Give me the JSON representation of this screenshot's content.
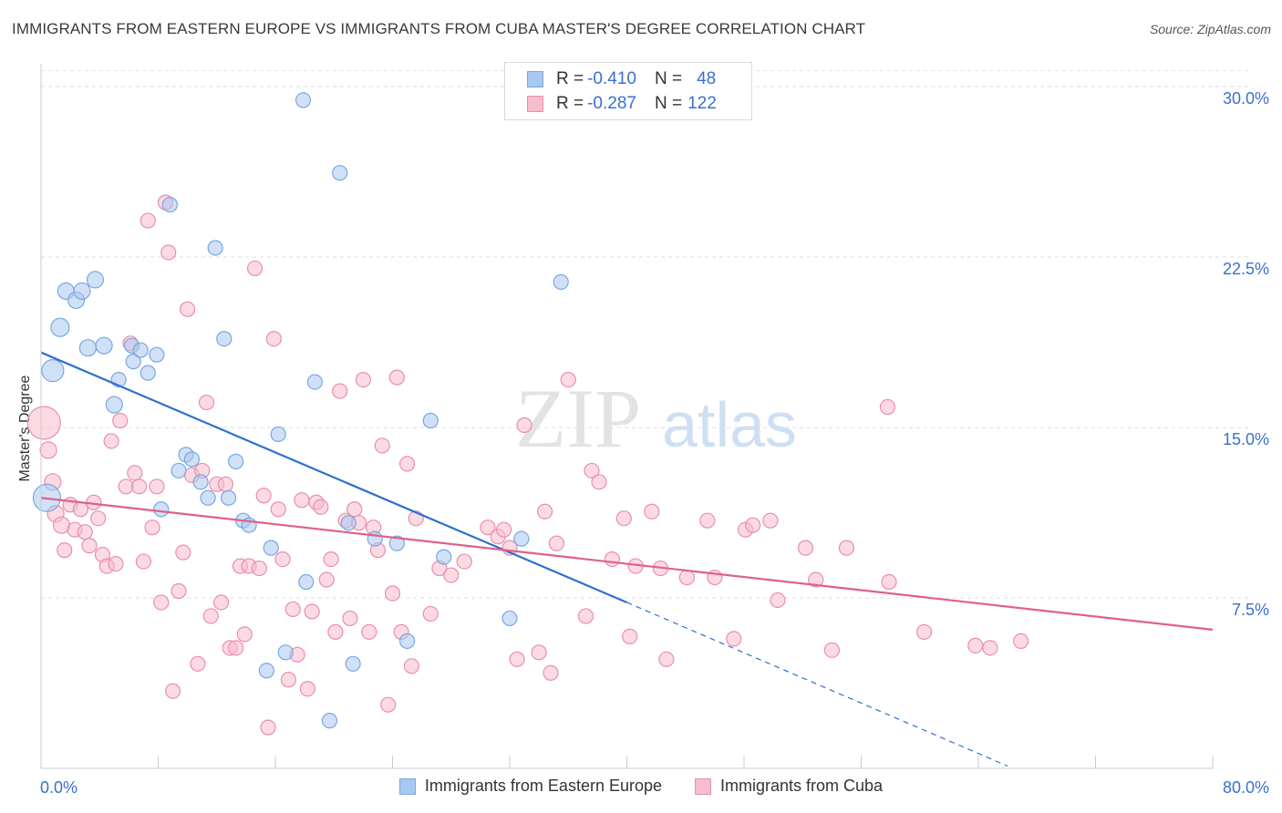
{
  "title": "IMMIGRANTS FROM EASTERN EUROPE VS IMMIGRANTS FROM CUBA MASTER'S DEGREE CORRELATION CHART",
  "source": "Source: ZipAtlas.com",
  "watermark": {
    "zip": "ZIP",
    "atlas": "atlas"
  },
  "legend_top": [
    {
      "r_label": "R =",
      "r_value": "-0.410",
      "n_label": "N =",
      "n_value": "48",
      "color": "#a9c8f0",
      "border": "#7aa7e0"
    },
    {
      "r_label": "R =",
      "r_value": "-0.287",
      "n_label": "N =",
      "n_value": "122",
      "color": "#f7bccd",
      "border": "#e98fab"
    }
  ],
  "legend_bottom": [
    "Immigrants from Eastern Europe",
    "Immigrants from Cuba"
  ],
  "chart_data": {
    "type": "scatter",
    "title": "IMMIGRANTS FROM EASTERN EUROPE VS IMMIGRANTS FROM CUBA MASTER'S DEGREE CORRELATION CHART",
    "xlabel": "",
    "ylabel": "Master's Degree",
    "xlim": [
      0,
      80
    ],
    "ylim": [
      0,
      31
    ],
    "x_tick_labels": [
      "0.0%",
      "80.0%"
    ],
    "y_ticks": [
      7.5,
      15.0,
      22.5,
      30.0
    ],
    "y_tick_labels": [
      "7.5%",
      "15.0%",
      "22.5%",
      "30.0%"
    ],
    "series": [
      {
        "name": "Immigrants from Eastern Europe",
        "color": "#a9c8f0",
        "edge": "#7aa7e0",
        "line_color": "#2f6fcf",
        "trend": {
          "x0": 0,
          "y0": 18.3,
          "x1": 40,
          "y1": 7.3,
          "dash_to_x": 66,
          "dash_to_y": 0.1
        },
        "points": [
          [
            0.4,
            11.9,
            15
          ],
          [
            0.8,
            17.5,
            12
          ],
          [
            1.3,
            19.4,
            10
          ],
          [
            1.7,
            21.0,
            9
          ],
          [
            2.4,
            20.6,
            9
          ],
          [
            2.8,
            21.0,
            9
          ],
          [
            3.2,
            18.5,
            9
          ],
          [
            3.7,
            21.5,
            9
          ],
          [
            4.3,
            18.6,
            9
          ],
          [
            5.0,
            16.0,
            9
          ],
          [
            5.3,
            17.1,
            8
          ],
          [
            6.2,
            18.6,
            8
          ],
          [
            6.3,
            17.9,
            8
          ],
          [
            6.8,
            18.4,
            8
          ],
          [
            7.3,
            17.4,
            8
          ],
          [
            7.9,
            18.2,
            8
          ],
          [
            8.2,
            11.4,
            8
          ],
          [
            8.8,
            24.8,
            8
          ],
          [
            9.4,
            13.1,
            8
          ],
          [
            9.9,
            13.8,
            8
          ],
          [
            10.3,
            13.6,
            8
          ],
          [
            10.9,
            12.6,
            8
          ],
          [
            11.4,
            11.9,
            8
          ],
          [
            11.9,
            22.9,
            8
          ],
          [
            12.5,
            18.9,
            8
          ],
          [
            12.8,
            11.9,
            8
          ],
          [
            13.3,
            13.5,
            8
          ],
          [
            13.8,
            10.9,
            8
          ],
          [
            14.2,
            10.7,
            8
          ],
          [
            15.4,
            4.3,
            8
          ],
          [
            15.7,
            9.7,
            8
          ],
          [
            16.2,
            14.7,
            8
          ],
          [
            16.7,
            5.1,
            8
          ],
          [
            17.9,
            29.4,
            8
          ],
          [
            18.1,
            8.2,
            8
          ],
          [
            18.7,
            17.0,
            8
          ],
          [
            19.7,
            2.1,
            8
          ],
          [
            20.4,
            26.2,
            8
          ],
          [
            21.0,
            10.8,
            8
          ],
          [
            21.3,
            4.6,
            8
          ],
          [
            22.8,
            10.1,
            8
          ],
          [
            24.3,
            9.9,
            8
          ],
          [
            25.0,
            5.6,
            8
          ],
          [
            26.6,
            15.3,
            8
          ],
          [
            27.5,
            9.3,
            8
          ],
          [
            32.0,
            6.6,
            8
          ],
          [
            32.8,
            10.1,
            8
          ],
          [
            35.5,
            21.4,
            8
          ]
        ]
      },
      {
        "name": "Immigrants from Cuba",
        "color": "#f7bccd",
        "edge": "#e98fab",
        "line_color": "#e0608a",
        "trend": {
          "x0": 0,
          "y0": 11.9,
          "x1": 80,
          "y1": 6.1
        },
        "points": [
          [
            0.2,
            15.2,
            18
          ],
          [
            0.5,
            14.0,
            9
          ],
          [
            0.8,
            12.6,
            9
          ],
          [
            1.0,
            11.2,
            9
          ],
          [
            1.4,
            10.7,
            9
          ],
          [
            1.6,
            9.6,
            8
          ],
          [
            2.0,
            11.6,
            8
          ],
          [
            2.3,
            10.5,
            8
          ],
          [
            2.7,
            11.4,
            8
          ],
          [
            3.0,
            10.4,
            8
          ],
          [
            3.3,
            9.8,
            8
          ],
          [
            3.6,
            11.7,
            8
          ],
          [
            3.9,
            11.0,
            8
          ],
          [
            4.2,
            9.4,
            8
          ],
          [
            4.5,
            8.9,
            8
          ],
          [
            4.8,
            14.4,
            8
          ],
          [
            5.1,
            9.0,
            8
          ],
          [
            5.4,
            15.3,
            8
          ],
          [
            5.8,
            12.4,
            8
          ],
          [
            6.1,
            18.7,
            8
          ],
          [
            6.4,
            13.0,
            8
          ],
          [
            6.7,
            12.4,
            8
          ],
          [
            7.0,
            9.1,
            8
          ],
          [
            7.3,
            24.1,
            8
          ],
          [
            7.6,
            10.6,
            8
          ],
          [
            7.9,
            12.4,
            8
          ],
          [
            8.2,
            7.3,
            8
          ],
          [
            8.5,
            24.9,
            8
          ],
          [
            8.7,
            22.7,
            8
          ],
          [
            9.0,
            3.4,
            8
          ],
          [
            9.4,
            7.8,
            8
          ],
          [
            9.7,
            9.5,
            8
          ],
          [
            10.0,
            20.2,
            8
          ],
          [
            10.3,
            12.9,
            8
          ],
          [
            10.7,
            4.6,
            8
          ],
          [
            11.0,
            13.1,
            8
          ],
          [
            11.3,
            16.1,
            8
          ],
          [
            11.6,
            6.7,
            8
          ],
          [
            12.0,
            12.5,
            8
          ],
          [
            12.3,
            7.3,
            8
          ],
          [
            12.6,
            12.5,
            8
          ],
          [
            12.9,
            5.3,
            8
          ],
          [
            13.3,
            5.3,
            8
          ],
          [
            13.6,
            8.9,
            8
          ],
          [
            13.9,
            5.9,
            8
          ],
          [
            14.2,
            8.9,
            8
          ],
          [
            14.6,
            22.0,
            8
          ],
          [
            14.9,
            8.8,
            8
          ],
          [
            15.2,
            12.0,
            8
          ],
          [
            15.5,
            1.8,
            8
          ],
          [
            15.9,
            18.9,
            8
          ],
          [
            16.2,
            11.4,
            8
          ],
          [
            16.5,
            9.2,
            8
          ],
          [
            16.9,
            3.9,
            8
          ],
          [
            17.2,
            7.0,
            8
          ],
          [
            17.5,
            5.0,
            8
          ],
          [
            17.8,
            11.8,
            8
          ],
          [
            18.2,
            3.5,
            8
          ],
          [
            18.5,
            6.9,
            8
          ],
          [
            18.8,
            11.7,
            8
          ],
          [
            19.1,
            11.5,
            8
          ],
          [
            19.5,
            8.3,
            8
          ],
          [
            19.8,
            9.2,
            8
          ],
          [
            20.1,
            6.0,
            8
          ],
          [
            20.4,
            16.6,
            8
          ],
          [
            20.8,
            10.9,
            8
          ],
          [
            21.1,
            6.6,
            8
          ],
          [
            21.4,
            11.4,
            8
          ],
          [
            21.7,
            10.8,
            8
          ],
          [
            22.0,
            17.1,
            8
          ],
          [
            22.4,
            6.0,
            8
          ],
          [
            22.7,
            10.6,
            8
          ],
          [
            23.0,
            9.6,
            8
          ],
          [
            23.3,
            14.2,
            8
          ],
          [
            23.7,
            2.8,
            8
          ],
          [
            24.0,
            7.7,
            8
          ],
          [
            24.3,
            17.2,
            8
          ],
          [
            24.6,
            6.0,
            8
          ],
          [
            25.0,
            13.4,
            8
          ],
          [
            25.3,
            4.5,
            8
          ],
          [
            25.6,
            11.0,
            8
          ],
          [
            26.6,
            6.8,
            8
          ],
          [
            27.2,
            8.8,
            8
          ],
          [
            28.0,
            8.5,
            8
          ],
          [
            28.9,
            9.1,
            8
          ],
          [
            30.5,
            10.6,
            8
          ],
          [
            31.2,
            10.2,
            8
          ],
          [
            31.6,
            10.5,
            8
          ],
          [
            32.0,
            9.7,
            8
          ],
          [
            32.5,
            4.8,
            8
          ],
          [
            33.0,
            15.1,
            8
          ],
          [
            34.0,
            5.1,
            8
          ],
          [
            34.4,
            11.3,
            8
          ],
          [
            34.8,
            4.2,
            8
          ],
          [
            35.2,
            9.9,
            8
          ],
          [
            36.0,
            17.1,
            8
          ],
          [
            37.2,
            6.7,
            8
          ],
          [
            37.6,
            13.1,
            8
          ],
          [
            38.1,
            12.6,
            8
          ],
          [
            39.0,
            9.2,
            8
          ],
          [
            39.8,
            11.0,
            8
          ],
          [
            40.2,
            5.8,
            8
          ],
          [
            40.6,
            8.9,
            8
          ],
          [
            41.7,
            11.3,
            8
          ],
          [
            42.3,
            8.8,
            8
          ],
          [
            42.7,
            4.8,
            8
          ],
          [
            44.1,
            8.4,
            8
          ],
          [
            45.5,
            10.9,
            8
          ],
          [
            46.0,
            8.4,
            8
          ],
          [
            47.3,
            5.7,
            8
          ],
          [
            48.1,
            10.5,
            8
          ],
          [
            48.6,
            10.7,
            8
          ],
          [
            49.8,
            10.9,
            8
          ],
          [
            50.3,
            7.4,
            8
          ],
          [
            52.2,
            9.7,
            8
          ],
          [
            52.9,
            8.3,
            8
          ],
          [
            54.0,
            5.2,
            8
          ],
          [
            55.0,
            9.7,
            8
          ],
          [
            57.8,
            15.9,
            8
          ],
          [
            57.9,
            8.2,
            8
          ],
          [
            60.3,
            6.0,
            8
          ],
          [
            63.8,
            5.4,
            8
          ],
          [
            64.8,
            5.3,
            8
          ],
          [
            66.9,
            5.6,
            8
          ]
        ]
      }
    ]
  }
}
